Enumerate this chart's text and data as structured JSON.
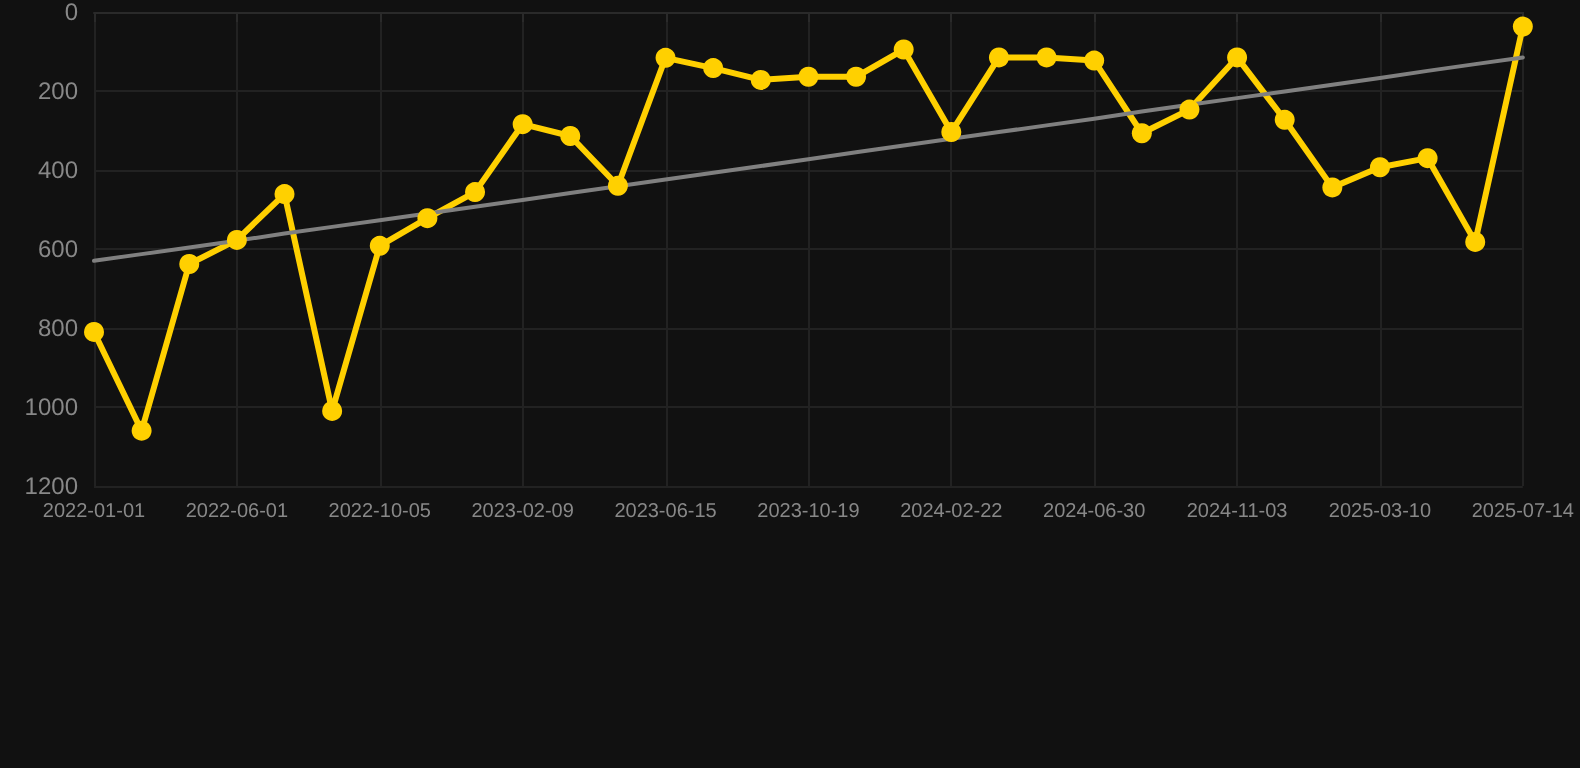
{
  "chart_data": {
    "type": "line",
    "categories": [
      "2022-01-01",
      null,
      null,
      "2022-06-01",
      null,
      null,
      "2022-10-05",
      null,
      null,
      "2023-02-09",
      null,
      null,
      "2023-06-15",
      null,
      null,
      "2023-10-19",
      null,
      null,
      "2024-02-22",
      null,
      null,
      "2024-06-30",
      null,
      null,
      "2024-11-03",
      null,
      null,
      "2025-03-10",
      null,
      null,
      "2025-07-14"
    ],
    "series": [
      {
        "color": "#ffd000",
        "marker": "circle",
        "values": [
          810,
          1060,
          638,
          577,
          461,
          1010,
          592,
          522,
          456,
          284,
          314,
          440,
          116,
          142,
          172,
          164,
          164,
          95,
          304,
          115,
          115,
          123,
          307,
          247,
          115,
          273,
          444,
          393,
          370,
          582,
          37
        ]
      },
      {
        "color": "#808080",
        "marker": "none",
        "values": [
          630,
          613,
          596,
          579,
          561,
          544,
          527,
          510,
          493,
          476,
          458,
          441,
          424,
          407,
          390,
          373,
          355,
          338,
          321,
          304,
          287,
          270,
          252,
          235,
          218,
          201,
          184,
          167,
          149,
          132,
          115
        ]
      }
    ],
    "ylim": [
      1200,
      0
    ],
    "yticks": [
      0,
      200,
      400,
      600,
      800,
      1000,
      1200
    ],
    "grid": true,
    "line_style": "solid"
  }
}
